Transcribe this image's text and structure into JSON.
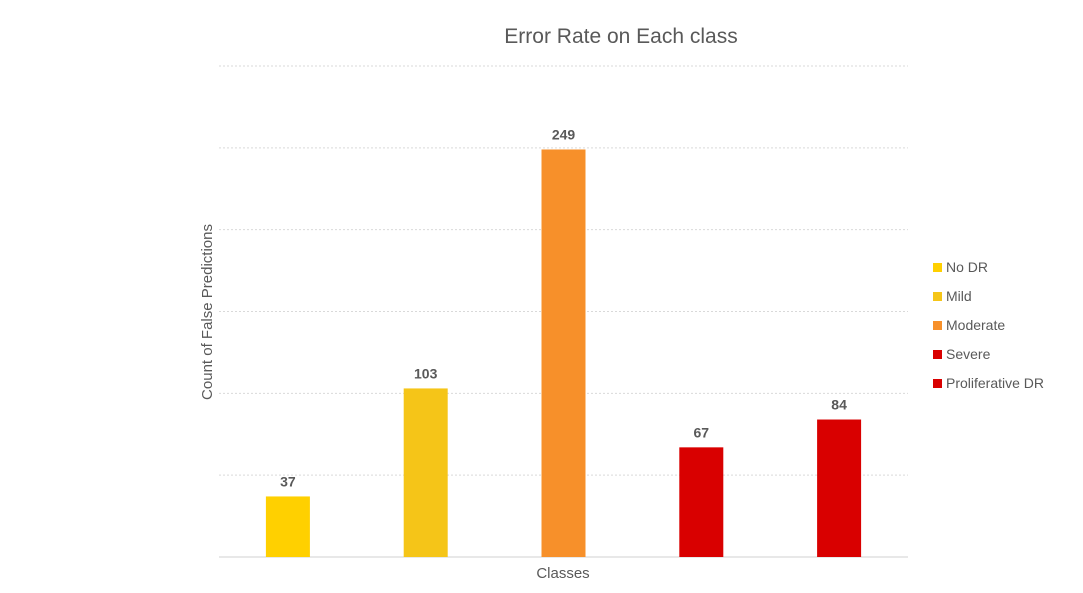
{
  "chart_data": {
    "type": "bar",
    "title": "Error Rate on Each class",
    "xlabel": "Classes",
    "ylabel": "Count of False Predictions",
    "categories": [
      "No DR",
      "Mild",
      "Moderate",
      "Severe",
      "Proliferative DR"
    ],
    "values": [
      37,
      103,
      249,
      67,
      84
    ],
    "colors": [
      "#FFD000",
      "#F5C518",
      "#F7902A",
      "#D90000",
      "#D90000"
    ],
    "ylim": [
      0,
      300
    ],
    "ytick_step": 50,
    "grid": true,
    "legend": {
      "placement": "right",
      "entries": [
        "No DR",
        "Mild",
        "Moderate",
        "Severe",
        "Proliferative DR"
      ]
    },
    "data_labels": true
  }
}
